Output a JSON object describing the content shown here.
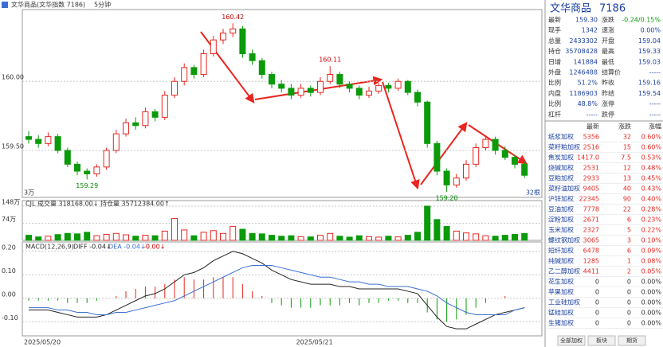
{
  "header": {
    "title": "文华商品(文华指数 7186)",
    "period": "5分钟"
  },
  "chart_data": [
    {
      "type": "candlestick",
      "up_color": "#e8261f",
      "down_color": "#0a9a0a",
      "ylim": [
        159.16,
        160.52
      ],
      "yticks": [
        {
          "value": 160,
          "label": "160.00"
        },
        {
          "value": 159.5,
          "label": "159.50"
        }
      ],
      "candles": [
        [
          159.6,
          159.64,
          159.55,
          159.58
        ],
        [
          159.58,
          159.61,
          159.52,
          159.55
        ],
        [
          159.55,
          159.63,
          159.53,
          159.6
        ],
        [
          159.6,
          159.62,
          159.48,
          159.5
        ],
        [
          159.5,
          159.52,
          159.38,
          159.4
        ],
        [
          159.4,
          159.42,
          159.32,
          159.35
        ],
        [
          159.35,
          159.37,
          159.29,
          159.33
        ],
        [
          159.33,
          159.4,
          159.31,
          159.38
        ],
        [
          159.38,
          159.52,
          159.36,
          159.5
        ],
        [
          159.5,
          159.65,
          159.48,
          159.62
        ],
        [
          159.62,
          159.73,
          159.6,
          159.7
        ],
        [
          159.7,
          159.74,
          159.65,
          159.68
        ],
        [
          159.68,
          159.81,
          159.66,
          159.78
        ],
        [
          159.78,
          159.8,
          159.71,
          159.74
        ],
        [
          159.74,
          159.93,
          159.72,
          159.9
        ],
        [
          159.9,
          160.03,
          159.88,
          160.0
        ],
        [
          160.0,
          160.13,
          159.97,
          160.1
        ],
        [
          160.1,
          160.12,
          160.02,
          160.05
        ],
        [
          160.05,
          160.23,
          160.03,
          160.2
        ],
        [
          160.2,
          160.33,
          160.18,
          160.3
        ],
        [
          160.3,
          160.38,
          160.27,
          160.35
        ],
        [
          160.35,
          160.42,
          160.32,
          160.38
        ],
        [
          160.38,
          160.4,
          160.17,
          160.2
        ],
        [
          160.2,
          160.23,
          160.12,
          160.15
        ],
        [
          160.15,
          160.17,
          160.02,
          160.05
        ],
        [
          160.05,
          160.07,
          159.95,
          159.98
        ],
        [
          159.98,
          160.01,
          159.92,
          159.95
        ],
        [
          159.95,
          159.98,
          159.87,
          159.9
        ],
        [
          159.9,
          159.98,
          159.88,
          159.95
        ],
        [
          159.95,
          159.97,
          159.89,
          159.92
        ],
        [
          159.92,
          160.03,
          159.9,
          160.0
        ],
        [
          160.0,
          160.11,
          159.98,
          160.05
        ],
        [
          160.05,
          160.07,
          159.95,
          159.98
        ],
        [
          159.98,
          160.0,
          159.92,
          159.95
        ],
        [
          159.95,
          159.97,
          159.87,
          159.9
        ],
        [
          159.9,
          159.96,
          159.88,
          159.93
        ],
        [
          159.93,
          159.99,
          159.91,
          159.97
        ],
        [
          159.97,
          159.99,
          159.92,
          159.95
        ],
        [
          159.95,
          160.02,
          159.93,
          160.0
        ],
        [
          160.0,
          160.01,
          159.9,
          159.92
        ],
        [
          159.92,
          159.94,
          159.82,
          159.85
        ],
        [
          159.85,
          159.86,
          159.52,
          159.55
        ],
        [
          159.55,
          159.57,
          159.32,
          159.35
        ],
        [
          159.35,
          159.37,
          159.2,
          159.25
        ],
        [
          159.25,
          159.33,
          159.23,
          159.3
        ],
        [
          159.3,
          159.43,
          159.28,
          159.4
        ],
        [
          159.4,
          159.55,
          159.38,
          159.52
        ],
        [
          159.52,
          159.61,
          159.5,
          159.58
        ],
        [
          159.58,
          159.6,
          159.47,
          159.5
        ],
        [
          159.5,
          159.53,
          159.43,
          159.45
        ],
        [
          159.45,
          159.47,
          159.37,
          159.4
        ],
        [
          159.4,
          159.42,
          159.3,
          159.32
        ]
      ],
      "annotations": [
        {
          "value": 160.42,
          "label": "160.42",
          "at": 21
        },
        {
          "value": 160.11,
          "label": "160.11",
          "at": 31
        },
        {
          "value": 159.29,
          "label": "159.29",
          "at": 6
        },
        {
          "value": 159.2,
          "label": "159.20",
          "at": 43
        }
      ],
      "corner_labels": [
        "3万",
        "32根"
      ]
    },
    {
      "type": "bar",
      "title": "CJL 成交量 318168.00↓ 持仓量 35712384.00↑",
      "ylim": [
        0,
        148
      ],
      "yticks": [
        {
          "value": 148,
          "label": "148万"
        },
        {
          "value": 74,
          "label": "74万"
        }
      ],
      "values": [
        22,
        15,
        18,
        25,
        30,
        28,
        35,
        20,
        26,
        30,
        24,
        18,
        22,
        20,
        40,
        95,
        45,
        20,
        35,
        42,
        30,
        60,
        48,
        30,
        28,
        22,
        18,
        20,
        16,
        15,
        22,
        30,
        18,
        14,
        20,
        16,
        14,
        18,
        15,
        22,
        35,
        148,
        90,
        60,
        40,
        32,
        28,
        20,
        18,
        22,
        26,
        30
      ]
    },
    {
      "type": "macd",
      "title": "MACD(12,26,9)",
      "legend": [
        "DIFF -0.04↓",
        "DEA -0.04↓",
        "-0.00↓"
      ],
      "ylim": [
        -0.16,
        0.24
      ],
      "yticks": [
        {
          "value": 0.2,
          "label": "0.20"
        },
        {
          "value": 0.1,
          "label": "0.10"
        },
        {
          "value": 0,
          "label": "0.00"
        },
        {
          "value": -0.1,
          "label": "-0.10"
        }
      ],
      "categories": [
        "2025/05/20",
        null,
        null,
        null,
        null,
        null,
        null,
        null,
        null,
        null,
        null,
        null,
        null,
        null,
        null,
        null,
        null,
        null,
        null,
        null,
        null,
        null,
        null,
        null,
        null,
        null,
        null,
        null,
        "2025/05/21",
        null,
        null,
        null,
        null,
        null,
        null,
        null,
        null,
        null,
        null,
        null,
        null,
        null,
        null,
        null,
        null,
        null,
        null,
        null,
        null,
        null,
        null,
        null
      ],
      "up_color": "#e8261f",
      "down_color": "#0a9a0a",
      "series": [
        {
          "color": "#222222",
          "values": [
            -0.05,
            -0.05,
            -0.05,
            -0.06,
            -0.07,
            -0.08,
            -0.08,
            -0.08,
            -0.07,
            -0.05,
            -0.03,
            -0.01,
            0.01,
            0.02,
            0.04,
            0.07,
            0.1,
            0.11,
            0.13,
            0.16,
            0.18,
            0.2,
            0.19,
            0.17,
            0.15,
            0.12,
            0.1,
            0.08,
            0.07,
            0.06,
            0.06,
            0.06,
            0.05,
            0.05,
            0.04,
            0.04,
            0.04,
            0.04,
            0.04,
            0.03,
            0.02,
            -0.03,
            -0.08,
            -0.12,
            -0.13,
            -0.13,
            -0.11,
            -0.09,
            -0.07,
            -0.06,
            -0.05,
            -0.04
          ]
        },
        {
          "color": "#3a6ed6",
          "values": [
            -0.04,
            -0.04,
            -0.04,
            -0.05,
            -0.05,
            -0.06,
            -0.06,
            -0.07,
            -0.07,
            -0.06,
            -0.06,
            -0.05,
            -0.04,
            -0.03,
            -0.02,
            -0.01,
            0.01,
            0.03,
            0.05,
            0.07,
            0.09,
            0.11,
            0.13,
            0.14,
            0.14,
            0.14,
            0.13,
            0.12,
            0.11,
            0.1,
            0.09,
            0.09,
            0.08,
            0.07,
            0.07,
            0.06,
            0.06,
            0.05,
            0.05,
            0.05,
            0.04,
            0.03,
            0.01,
            -0.02,
            -0.04,
            -0.06,
            -0.07,
            -0.07,
            -0.07,
            -0.07,
            -0.05,
            -0.04
          ]
        },
        {
          "values": [
            -0.01,
            -0.01,
            -0.01,
            -0.01,
            -0.02,
            -0.02,
            -0.02,
            -0.01,
            0,
            0.01,
            0.03,
            0.04,
            0.05,
            0.05,
            0.06,
            0.08,
            0.09,
            0.08,
            0.08,
            0.09,
            0.09,
            0.09,
            0.06,
            0.03,
            0.01,
            -0.02,
            -0.03,
            -0.04,
            -0.04,
            -0.04,
            -0.03,
            -0.03,
            -0.03,
            -0.02,
            -0.03,
            -0.02,
            -0.02,
            -0.01,
            -0.01,
            -0.02,
            -0.02,
            -0.06,
            -0.09,
            -0.1,
            -0.09,
            -0.07,
            -0.04,
            -0.02,
            0,
            0.01,
            0,
            0
          ]
        }
      ]
    }
  ],
  "quote": {
    "title": "文华商品",
    "code": "7186",
    "rows": [
      [
        "最新",
        "159.30",
        "涨跌",
        "-0.24/0.15%"
      ],
      [
        "现手",
        "1342",
        "速涨",
        "0.00%"
      ],
      [
        "总量",
        "2433302",
        "开盘",
        "159.04"
      ],
      [
        "持仓",
        "35708428",
        "最高",
        "159.33"
      ],
      [
        "日增",
        "141884",
        "最低",
        "159.03"
      ],
      [
        "外盘",
        "1246488",
        "结算价",
        "-----"
      ],
      [
        "比例",
        "51.2%",
        "昨收",
        "159.16"
      ],
      [
        "内盘",
        "1186903",
        "昨结",
        "159.54"
      ],
      [
        "比例",
        "48.8%",
        "涨停",
        "-----"
      ],
      [
        "杠杆",
        "-----",
        "跌停",
        "-----"
      ]
    ]
  },
  "ranking": {
    "columns": [
      "最新",
      "涨跌",
      "涨幅"
    ],
    "rows": [
      [
        "纸浆加权",
        "5356",
        "32",
        "0.60%"
      ],
      [
        "菜籽粕加权",
        "2516",
        "15",
        "0.60%"
      ],
      [
        "焦炭加权",
        "1417.0",
        "7.5",
        "0.53%"
      ],
      [
        "烧碱加权",
        "2531",
        "12",
        "0.48%"
      ],
      [
        "豆粕加权",
        "2933",
        "13",
        "0.45%"
      ],
      [
        "菜籽油加权",
        "9405",
        "40",
        "0.43%"
      ],
      [
        "沪锌加权",
        "22345",
        "90",
        "0.40%"
      ],
      [
        "豆油加权",
        "7778",
        "22",
        "0.28%"
      ],
      [
        "淀粉加权",
        "2671",
        "6",
        "0.23%"
      ],
      [
        "玉米加权",
        "2327",
        "5",
        "0.22%"
      ],
      [
        "螺纹钢加权",
        "3065",
        "3",
        "0.10%"
      ],
      [
        "短纤加权",
        "6478",
        "6",
        "0.09%"
      ],
      [
        "纯碱加权",
        "1285",
        "1",
        "0.08%"
      ],
      [
        "乙二醇加权",
        "4411",
        "2",
        "0.05%"
      ],
      [
        "花生加权",
        "0",
        "0",
        "0.00%"
      ],
      [
        "苹果加权",
        "0",
        "0",
        "0.00%"
      ],
      [
        "工业硅加权",
        "0",
        "0",
        "0.00%"
      ],
      [
        "锰硅加权",
        "0",
        "0",
        "0.00%"
      ],
      [
        "生猪加权",
        "0",
        "0",
        "0.00%"
      ]
    ]
  },
  "tabs": [
    "全部加权",
    "板块",
    "期货"
  ]
}
